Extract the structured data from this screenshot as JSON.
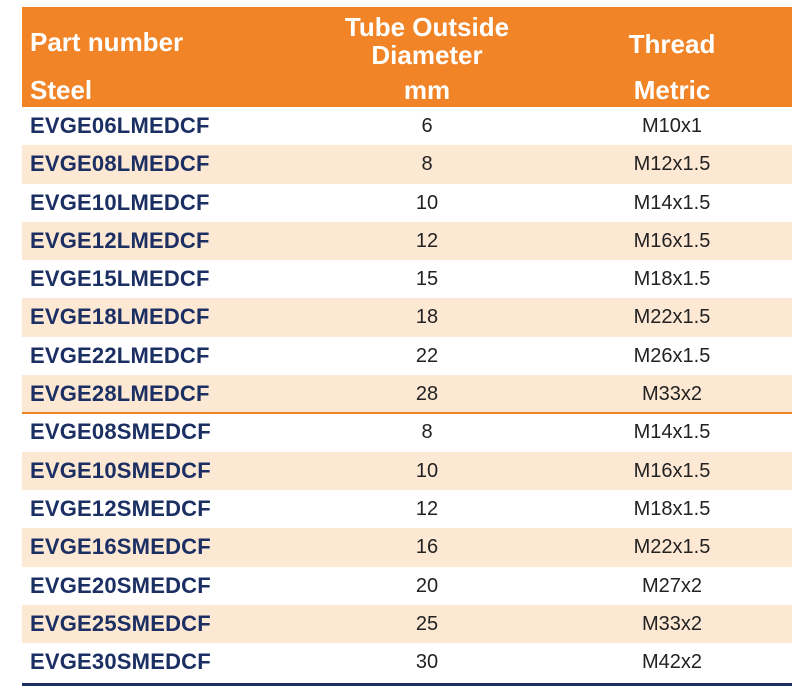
{
  "header": {
    "part_number": "Part number",
    "steel": "Steel",
    "tube_outside_line1": "Tube Outside",
    "tube_outside_line2": "Diameter",
    "mm": "mm",
    "thread": "Thread",
    "metric": "Metric"
  },
  "rows": [
    {
      "part": "EVGE06LMEDCF",
      "diameter": "6",
      "thread": "M10x1"
    },
    {
      "part": "EVGE08LMEDCF",
      "diameter": "8",
      "thread": "M12x1.5"
    },
    {
      "part": "EVGE10LMEDCF",
      "diameter": "10",
      "thread": "M14x1.5"
    },
    {
      "part": "EVGE12LMEDCF",
      "diameter": "12",
      "thread": "M16x1.5"
    },
    {
      "part": "EVGE15LMEDCF",
      "diameter": "15",
      "thread": "M18x1.5"
    },
    {
      "part": "EVGE18LMEDCF",
      "diameter": "18",
      "thread": "M22x1.5"
    },
    {
      "part": "EVGE22LMEDCF",
      "diameter": "22",
      "thread": "M26x1.5"
    },
    {
      "part": "EVGE28LMEDCF",
      "diameter": "28",
      "thread": "M33x2"
    },
    {
      "part": "EVGE08SMEDCF",
      "diameter": "8",
      "thread": "M14x1.5"
    },
    {
      "part": "EVGE10SMEDCF",
      "diameter": "10",
      "thread": "M16x1.5"
    },
    {
      "part": "EVGE12SMEDCF",
      "diameter": "12",
      "thread": "M18x1.5"
    },
    {
      "part": "EVGE16SMEDCF",
      "diameter": "16",
      "thread": "M22x1.5"
    },
    {
      "part": "EVGE20SMEDCF",
      "diameter": "20",
      "thread": "M27x2"
    },
    {
      "part": "EVGE25SMEDCF",
      "diameter": "25",
      "thread": "M33x2"
    },
    {
      "part": "EVGE30SMEDCF",
      "diameter": "30",
      "thread": "M42x2"
    }
  ],
  "colors": {
    "header_bg": "#f08427",
    "alt_row_bg": "#fde8d4",
    "part_text": "#1b2f63",
    "divider": "#f08427"
  }
}
